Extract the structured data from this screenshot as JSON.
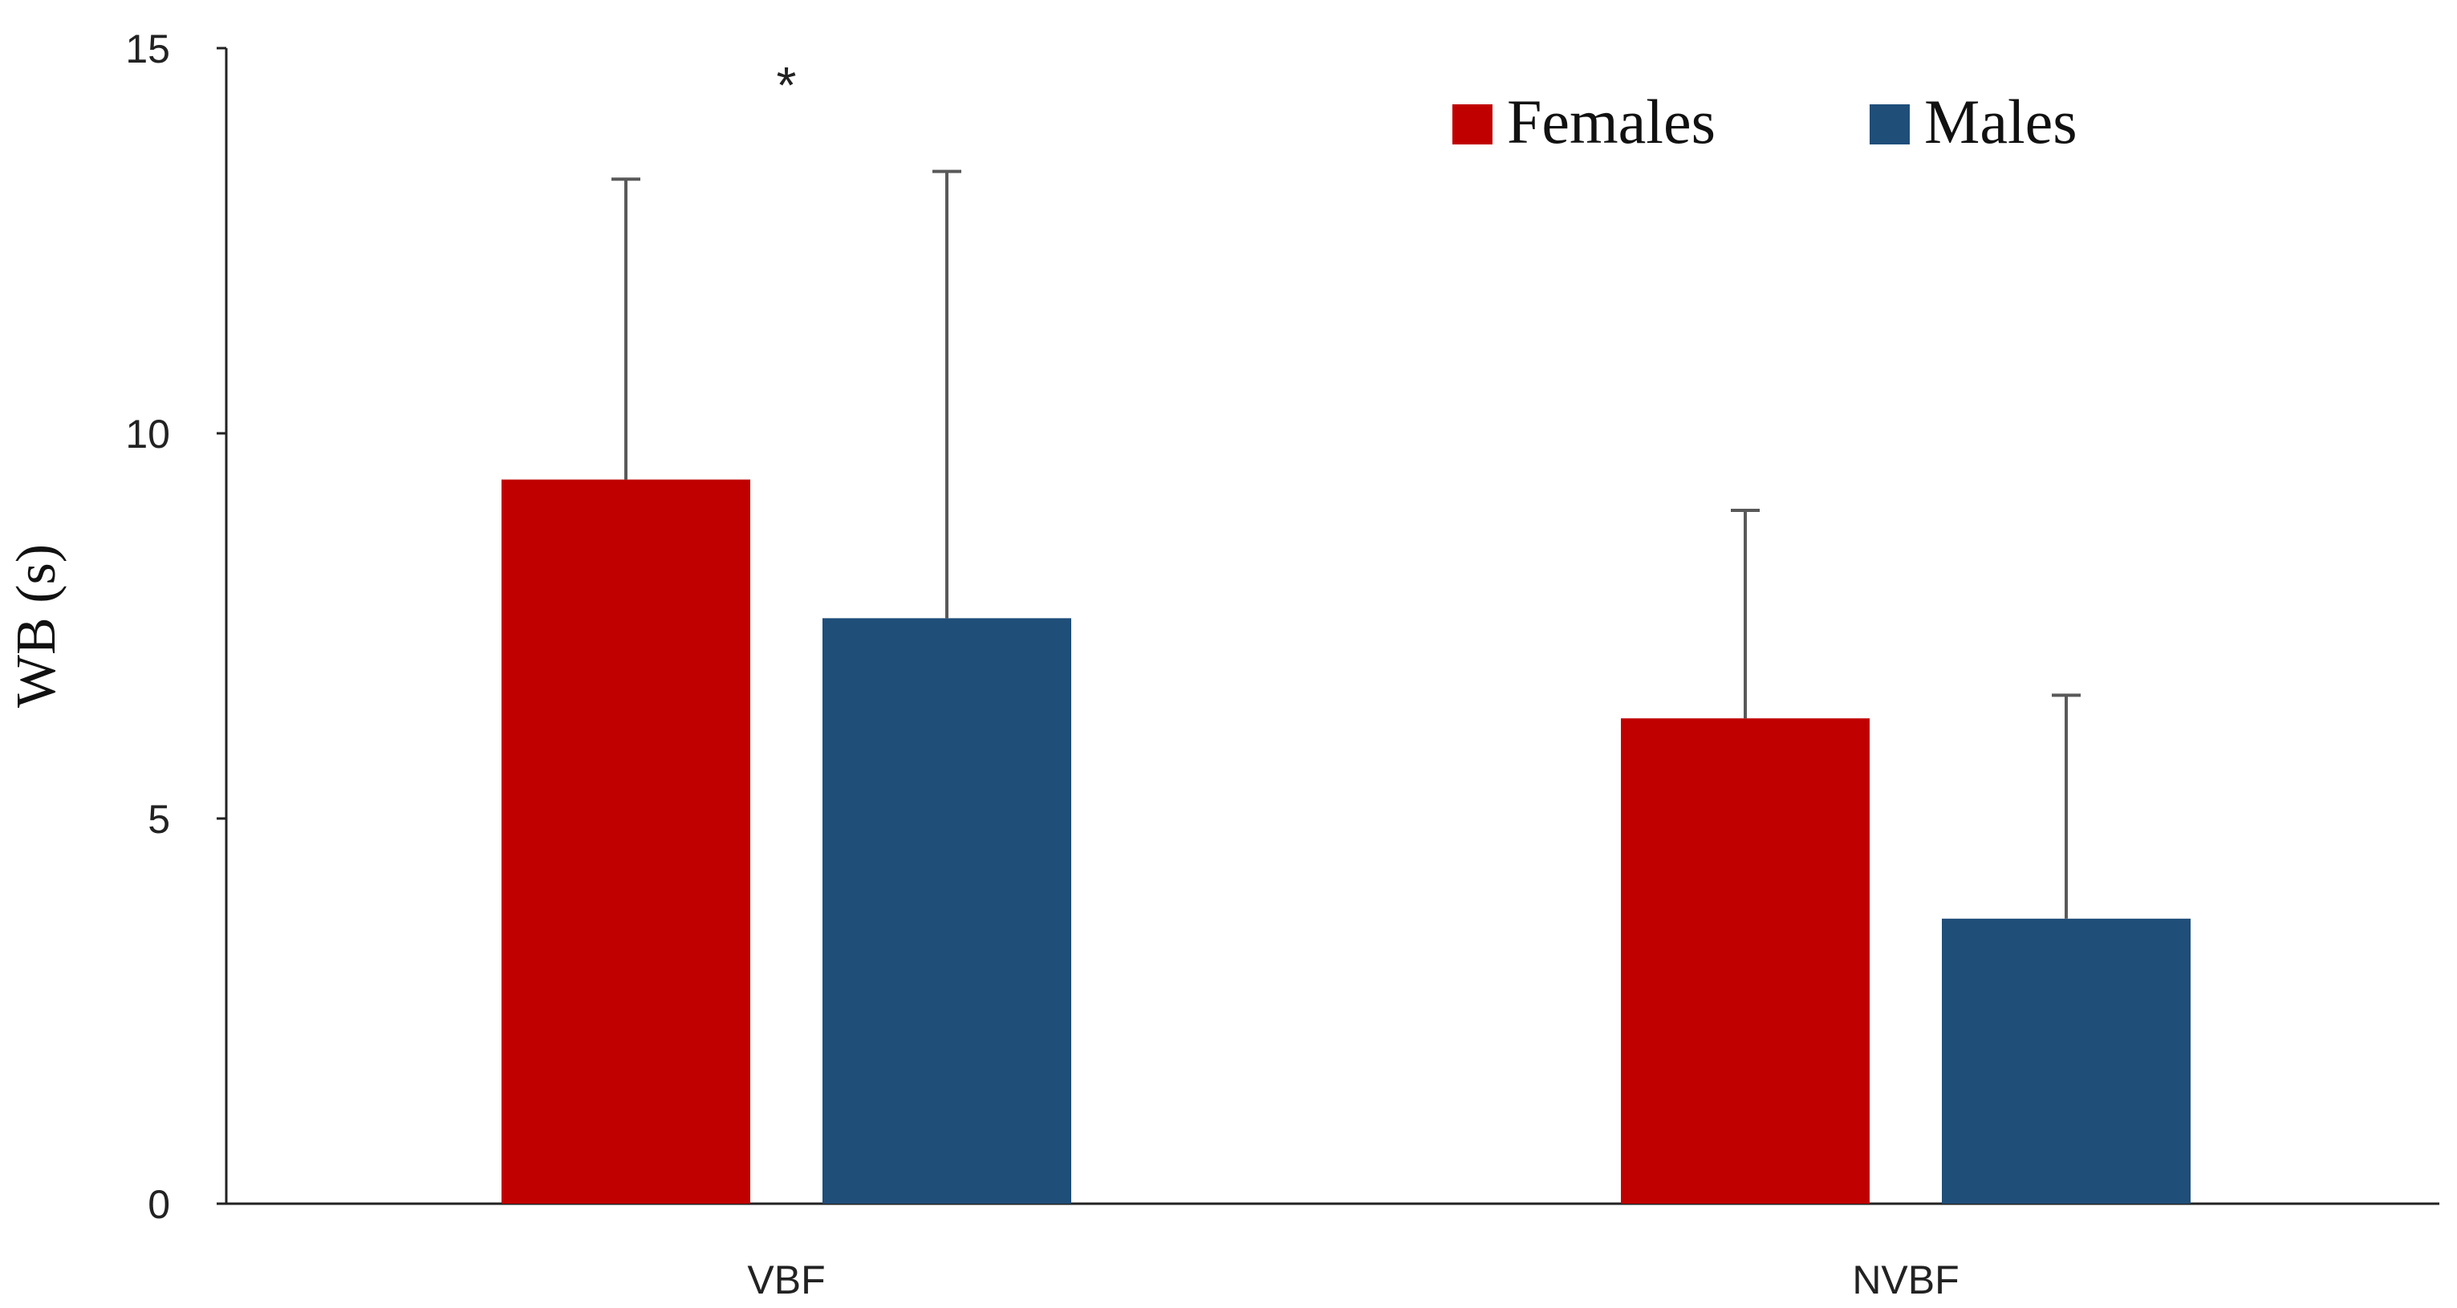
{
  "chart_data": {
    "type": "bar",
    "title": "",
    "xlabel": "",
    "ylabel": "WB (s)",
    "ylim": [
      0,
      15
    ],
    "yticks": [
      0,
      5,
      10,
      15
    ],
    "grid": false,
    "legend_position": "top-right",
    "categories": [
      "VBF",
      "NVBF"
    ],
    "series": [
      {
        "name": "Females",
        "color": "#c00000",
        "values": [
          9.4,
          6.3
        ],
        "errors": [
          3.9,
          2.7
        ]
      },
      {
        "name": "Males",
        "color": "#1f4e79",
        "values": [
          7.6,
          3.7
        ],
        "errors": [
          5.8,
          2.9
        ]
      }
    ],
    "annotations": [
      {
        "text": "*",
        "category": "VBF"
      }
    ]
  }
}
